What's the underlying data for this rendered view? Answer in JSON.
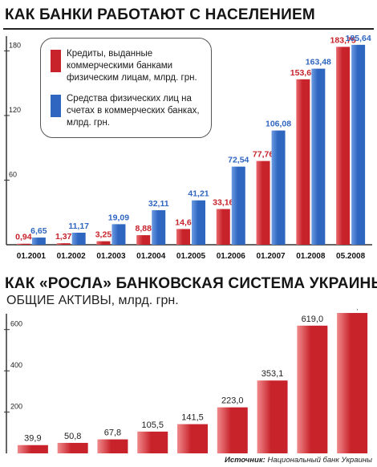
{
  "header1": {
    "title": "КАК БАНКИ РАБОТАЮТ С НАСЕЛЕНИЕМ"
  },
  "header2": {
    "title": "КАК «РОСЛА» БАНКОВСКАЯ СИСТЕМА УКРАИНЫ",
    "subtitle": "ОБЩИЕ АКТИВЫ, млрд. грн."
  },
  "source": {
    "label": "Источник:",
    "text": "Национальный банк Украины"
  },
  "colors": {
    "red": "#c8232b",
    "blue": "#2f66c0",
    "axis": "#333333"
  },
  "chart_data": [
    {
      "type": "bar",
      "title": "КАК БАНКИ РАБОТАЮТ С НАСЕЛЕНИЕМ",
      "categories": [
        "01.2001",
        "01.2002",
        "01.2003",
        "01.2004",
        "01.2005",
        "01.2006",
        "01.2007",
        "01.2008",
        "05.2008"
      ],
      "series": [
        {
          "name": "Кредиты, выданные коммерческими банками физическим лицам, млрд. грн.",
          "color": "#c8232b",
          "values": [
            0.94,
            1.37,
            3.25,
            8.88,
            14.6,
            33.16,
            77.76,
            153.63,
            183.75
          ],
          "labels": [
            "0,94",
            "1,37",
            "3,25",
            "8,88",
            "14,6",
            "33,16",
            "77,76",
            "153,63",
            "183,75"
          ]
        },
        {
          "name": "Средства физических лиц на счетах в коммерческих банках, млрд. грн.",
          "color": "#2f66c0",
          "values": [
            6.65,
            11.17,
            19.09,
            32.11,
            41.21,
            72.54,
            106.08,
            163.48,
            185.64
          ],
          "labels": [
            "6,65",
            "11,17",
            "19,09",
            "32,11",
            "41,21",
            "72,54",
            "106,08",
            "163,48",
            "185,64"
          ]
        }
      ],
      "yticks": [
        60,
        120,
        180
      ],
      "ylim": [
        0,
        190
      ],
      "legend": "top-left"
    },
    {
      "type": "bar",
      "title": "КАК «РОСЛА» БАНКОВСКАЯ СИСТЕМА УКРАИНЫ",
      "ylabel": "ОБЩИЕ АКТИВЫ, млрд. грн.",
      "series": [
        {
          "color": "#c8232b",
          "values": [
            39.9,
            50.8,
            67.8,
            105.5,
            141.5,
            223.0,
            353.1,
            619.0,
            680.4
          ],
          "labels": [
            "39,9",
            "50,8",
            "67,8",
            "105,5",
            "141,5",
            "223,0",
            "353,1",
            "619,0",
            "680,4"
          ]
        }
      ],
      "yticks": [
        200,
        400,
        600
      ],
      "ylim": [
        0,
        700
      ]
    }
  ]
}
